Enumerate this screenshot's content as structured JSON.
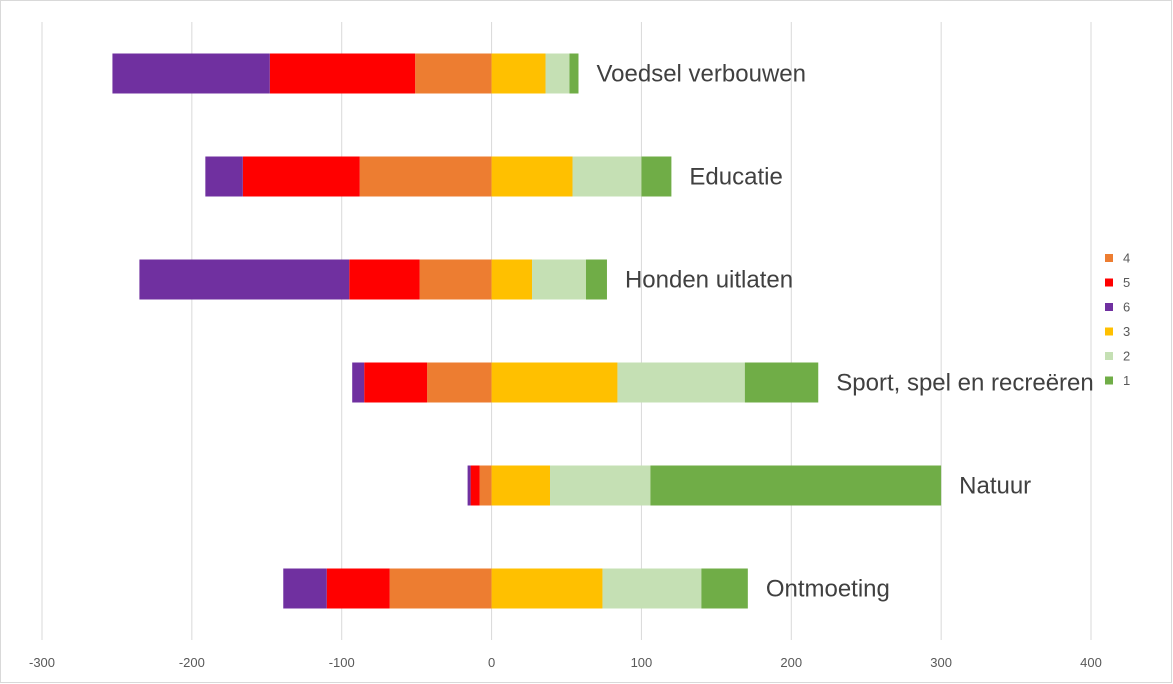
{
  "chart_data": {
    "type": "bar",
    "orientation": "horizontal",
    "stacked": "diverging",
    "xlim": [
      -300,
      400
    ],
    "x_ticks": [
      -300,
      -200,
      -100,
      0,
      100,
      200,
      300,
      400
    ],
    "x_tick_labels": [
      "-300",
      "-200",
      "-100",
      "0",
      "100",
      "200",
      "300",
      "400"
    ],
    "grid": "vertical",
    "legend_position": "right",
    "legend": [
      {
        "name": "4",
        "color": "#ED7D31"
      },
      {
        "name": "5",
        "color": "#FF0000"
      },
      {
        "name": "6",
        "color": "#7030A0"
      },
      {
        "name": "3",
        "color": "#FFC000"
      },
      {
        "name": "2",
        "color": "#C5E0B4"
      },
      {
        "name": "1",
        "color": "#70AD47"
      }
    ],
    "categories": [
      "Voedsel verbouwen",
      "Educatie",
      "Honden uitlaten",
      "Sport, spel en recreëren",
      "Natuur",
      "Ontmoeting"
    ],
    "series": [
      {
        "name": "4",
        "color": "#ED7D31",
        "side": "negative",
        "values": [
          -51,
          -88,
          -48,
          -43,
          -8,
          -68
        ]
      },
      {
        "name": "5",
        "color": "#FF0000",
        "side": "negative",
        "values": [
          -97,
          -78,
          -47,
          -42,
          -6,
          -42
        ]
      },
      {
        "name": "6",
        "color": "#7030A0",
        "side": "negative",
        "values": [
          -105,
          -25,
          -140,
          -8,
          -2,
          -29
        ]
      },
      {
        "name": "3",
        "color": "#FFC000",
        "side": "positive",
        "values": [
          36,
          54,
          27,
          84,
          39,
          74
        ]
      },
      {
        "name": "2",
        "color": "#C5E0B4",
        "side": "positive",
        "values": [
          16,
          46,
          36,
          85,
          67,
          66
        ]
      },
      {
        "name": "1",
        "color": "#70AD47",
        "side": "positive",
        "values": [
          6,
          20,
          14,
          49,
          194,
          31
        ]
      }
    ]
  }
}
